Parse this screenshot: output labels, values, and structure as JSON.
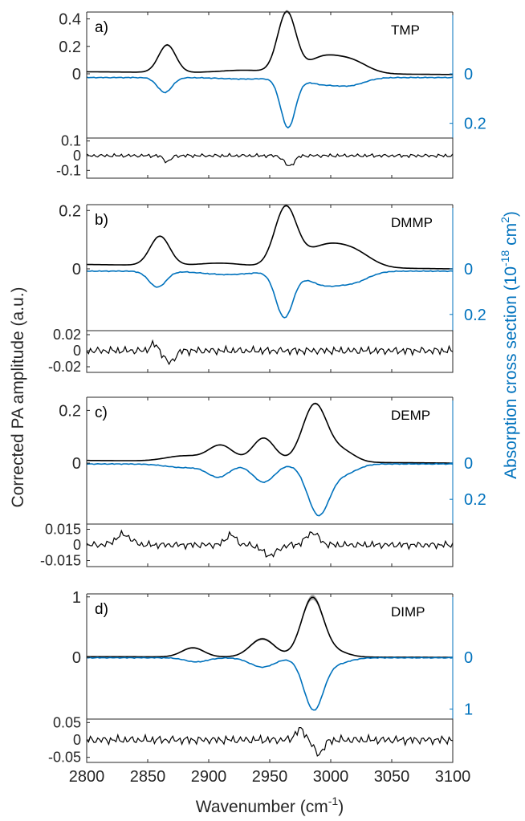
{
  "figure": {
    "xlabel_text": "Wavenumber (cm",
    "xlabel_sup": "-1",
    "xlabel_close": ")",
    "ylabel_left": "Corrected PA amplitude (a.u.)",
    "ylabel_right_text": "Absorption cross section (10",
    "ylabel_right_sup1": "-18",
    "ylabel_right_mid": " cm",
    "ylabel_right_sup2": "2",
    "ylabel_right_close": ")",
    "x_ticks": [
      "2800",
      "2850",
      "2900",
      "2950",
      "3000",
      "3050",
      "3100"
    ],
    "colors": {
      "pa": "#000000",
      "band": "#b4b4b4",
      "absorption": "#0072bd",
      "axis": "#262626"
    }
  },
  "chart_data": [
    {
      "type": "line",
      "panel": "a)",
      "compound": "TMP",
      "xlim": [
        2800,
        3100
      ],
      "pa_ylim": [
        -0.3,
        0.45
      ],
      "pa_ticks": [
        "0.4",
        "0.2",
        "0"
      ],
      "abs_ticks": [
        "0",
        "0.2"
      ],
      "abs_max": 0.24,
      "pa_peaks": [
        [
          2866,
          0.2,
          7
        ],
        [
          2964,
          0.44,
          7.5
        ],
        [
          2992,
          0.1,
          12
        ],
        [
          3015,
          0.1,
          14
        ],
        [
          2930,
          0.02,
          20
        ]
      ],
      "pa_baseline": [
        0.02,
        -0.005
      ],
      "abs_peaks": [
        [
          2864,
          0.06,
          6
        ],
        [
          2965,
          0.2,
          6
        ],
        [
          2992,
          0.025,
          12
        ],
        [
          3016,
          0.03,
          12
        ],
        [
          2930,
          0.006,
          20
        ]
      ],
      "abs_base": 0.015,
      "resid_ticks": [
        "0.1",
        "0",
        "-0.1"
      ],
      "resid_ylim": [
        -0.12,
        0.12
      ],
      "resid_amp": 0.015,
      "resid_dips": [
        [
          2866,
          -0.04,
          3
        ],
        [
          2966,
          -0.07,
          4
        ]
      ]
    },
    {
      "type": "line",
      "panel": "b)",
      "compound": "DMMP",
      "xlim": [
        2800,
        3100
      ],
      "pa_ylim": [
        -0.2,
        0.22
      ],
      "pa_ticks": [
        "0.2",
        "0"
      ],
      "abs_ticks": [
        "0",
        "0.2"
      ],
      "abs_max": 0.25,
      "pa_peaks": [
        [
          2860,
          0.1,
          8
        ],
        [
          2963,
          0.2,
          9
        ],
        [
          2995,
          0.07,
          16
        ],
        [
          3020,
          0.045,
          14
        ],
        [
          2910,
          0.01,
          18
        ]
      ],
      "pa_baseline": [
        0.015,
        0
      ],
      "abs_peaks": [
        [
          2858,
          0.07,
          7
        ],
        [
          2962,
          0.2,
          7
        ],
        [
          2995,
          0.06,
          14
        ],
        [
          3020,
          0.04,
          12
        ],
        [
          2915,
          0.015,
          20
        ]
      ],
      "abs_base": 0.01,
      "resid_ticks": [
        "0.02",
        "0",
        "-0.02"
      ],
      "resid_ylim": [
        -0.025,
        0.025
      ],
      "resid_amp": 0.006,
      "resid_dips": [
        [
          2868,
          -0.015,
          4
        ],
        [
          2855,
          0.008,
          3
        ]
      ]
    },
    {
      "type": "line",
      "panel": "c)",
      "compound": "DEMP",
      "xlim": [
        2800,
        3100
      ],
      "pa_ylim": [
        -0.2,
        0.25
      ],
      "pa_ticks": [
        "0.2",
        "0"
      ],
      "abs_ticks": [
        "0",
        "0.2"
      ],
      "abs_max": 0.31,
      "pa_peaks": [
        [
          2910,
          0.06,
          10
        ],
        [
          2945,
          0.09,
          9
        ],
        [
          2987,
          0.22,
          10
        ],
        [
          3010,
          0.04,
          10
        ],
        [
          2880,
          0.02,
          15
        ]
      ],
      "pa_baseline": [
        0.01,
        0
      ],
      "abs_peaks": [
        [
          2908,
          0.07,
          9
        ],
        [
          2945,
          0.1,
          9
        ],
        [
          2990,
          0.28,
          9
        ],
        [
          3012,
          0.05,
          10
        ],
        [
          2880,
          0.02,
          15
        ]
      ],
      "abs_base": 0.005,
      "resid_ticks": [
        "0.015",
        "0",
        "-0.015"
      ],
      "resid_ylim": [
        -0.02,
        0.02
      ],
      "resid_amp": 0.004,
      "resid_dips": [
        [
          2830,
          0.01,
          6
        ],
        [
          2918,
          0.01,
          4
        ],
        [
          2985,
          0.012,
          5
        ],
        [
          2950,
          -0.01,
          6
        ]
      ]
    },
    {
      "type": "line",
      "panel": "d)",
      "compound": "DIMP",
      "xlim": [
        2800,
        3100
      ],
      "pa_ylim": [
        -1.2,
        1.05
      ],
      "pa_ticks": [
        "1",
        "0"
      ],
      "abs_ticks": [
        "0",
        "1"
      ],
      "abs_max": 1.1,
      "pa_peaks": [
        [
          2887,
          0.15,
          9
        ],
        [
          2944,
          0.3,
          10
        ],
        [
          2985,
          0.98,
          9
        ],
        [
          3005,
          0.08,
          10
        ]
      ],
      "pa_baseline": [
        0.01,
        0
      ],
      "abs_peaks": [
        [
          2890,
          0.08,
          9
        ],
        [
          2944,
          0.18,
          10
        ],
        [
          2986,
          1.0,
          8
        ],
        [
          3006,
          0.1,
          10
        ]
      ],
      "abs_base": 0.01,
      "resid_ticks": [
        "0.05",
        "0",
        "-0.05"
      ],
      "resid_ylim": [
        -0.06,
        0.06
      ],
      "resid_amp": 0.015,
      "resid_dips": [
        [
          2975,
          0.03,
          4
        ],
        [
          2990,
          -0.04,
          4
        ]
      ]
    }
  ]
}
